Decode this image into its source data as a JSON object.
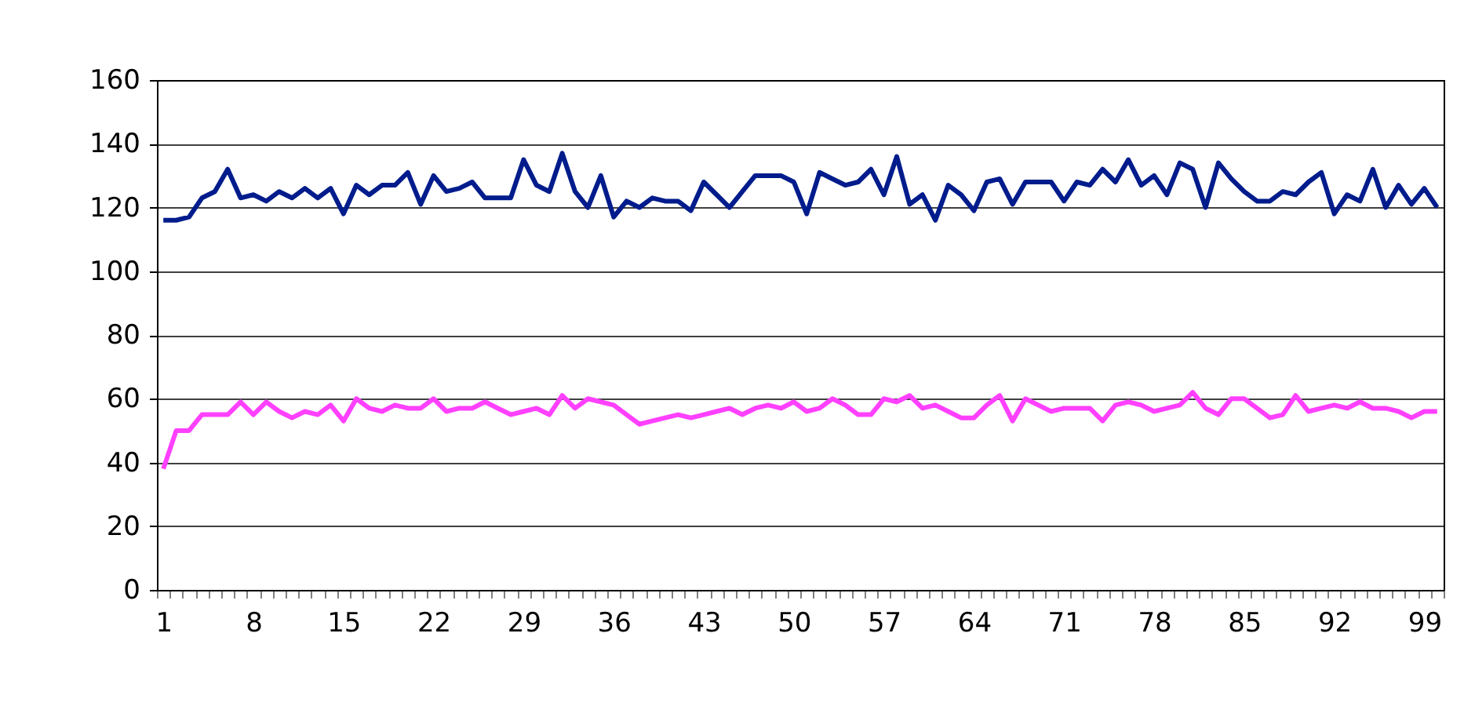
{
  "chart_data": {
    "type": "line",
    "categories": [
      "1",
      null,
      null,
      null,
      null,
      null,
      null,
      "8",
      null,
      null,
      null,
      null,
      null,
      null,
      "15",
      null,
      null,
      null,
      null,
      null,
      null,
      "22",
      null,
      null,
      null,
      null,
      null,
      null,
      "29",
      null,
      null,
      null,
      null,
      null,
      null,
      "36",
      null,
      null,
      null,
      null,
      null,
      null,
      "43",
      null,
      null,
      null,
      null,
      null,
      null,
      "50",
      null,
      null,
      null,
      null,
      null,
      null,
      "57",
      null,
      null,
      null,
      null,
      null,
      null,
      "64",
      null,
      null,
      null,
      null,
      null,
      null,
      "71",
      null,
      null,
      null,
      null,
      null,
      null,
      "78",
      null,
      null,
      null,
      null,
      null,
      null,
      "85",
      null,
      null,
      null,
      null,
      null,
      null,
      "92",
      null,
      null,
      null,
      null,
      null,
      null,
      "99",
      null
    ],
    "series": [
      {
        "color": "#001c8c",
        "values": [
          116,
          116,
          117,
          123,
          125,
          132,
          123,
          124,
          122,
          125,
          123,
          126,
          123,
          126,
          118,
          127,
          124,
          127,
          127,
          131,
          121,
          130,
          125,
          126,
          128,
          123,
          123,
          123,
          135,
          127,
          125,
          137,
          125,
          120,
          130,
          117,
          122,
          120,
          123,
          122,
          122,
          119,
          128,
          124,
          120,
          125,
          130,
          130,
          130,
          128,
          118,
          131,
          129,
          127,
          128,
          132,
          124,
          136,
          121,
          124,
          116,
          127,
          124,
          119,
          128,
          129,
          121,
          128,
          128,
          128,
          122,
          128,
          127,
          132,
          128,
          135,
          127,
          130,
          124,
          134,
          132,
          120,
          134,
          129,
          125,
          122,
          122,
          125,
          124,
          128,
          131,
          118,
          124,
          122,
          132,
          120,
          127,
          121,
          126,
          120
        ]
      },
      {
        "color": "#ff40ff",
        "values": [
          38,
          50,
          50,
          55,
          55,
          55,
          59,
          55,
          59,
          56,
          54,
          56,
          55,
          58,
          53,
          60,
          57,
          56,
          58,
          57,
          57,
          60,
          56,
          57,
          57,
          59,
          57,
          55,
          56,
          57,
          55,
          61,
          57,
          60,
          59,
          58,
          55,
          52,
          53,
          54,
          55,
          54,
          55,
          56,
          57,
          55,
          57,
          58,
          57,
          59,
          56,
          57,
          60,
          58,
          55,
          55,
          60,
          59,
          61,
          57,
          58,
          56,
          54,
          54,
          58,
          61,
          53,
          60,
          58,
          56,
          57,
          57,
          57,
          53,
          58,
          59,
          58,
          56,
          57,
          58,
          62,
          57,
          55,
          60,
          60,
          57,
          54,
          55,
          61,
          56,
          57,
          58,
          57,
          59,
          57,
          57,
          56,
          54,
          56,
          56
        ]
      }
    ],
    "ylim": [
      0,
      160
    ],
    "yticks": [
      0,
      20,
      40,
      60,
      80,
      100,
      120,
      140,
      160
    ],
    "grid": "y",
    "legend": false
  }
}
